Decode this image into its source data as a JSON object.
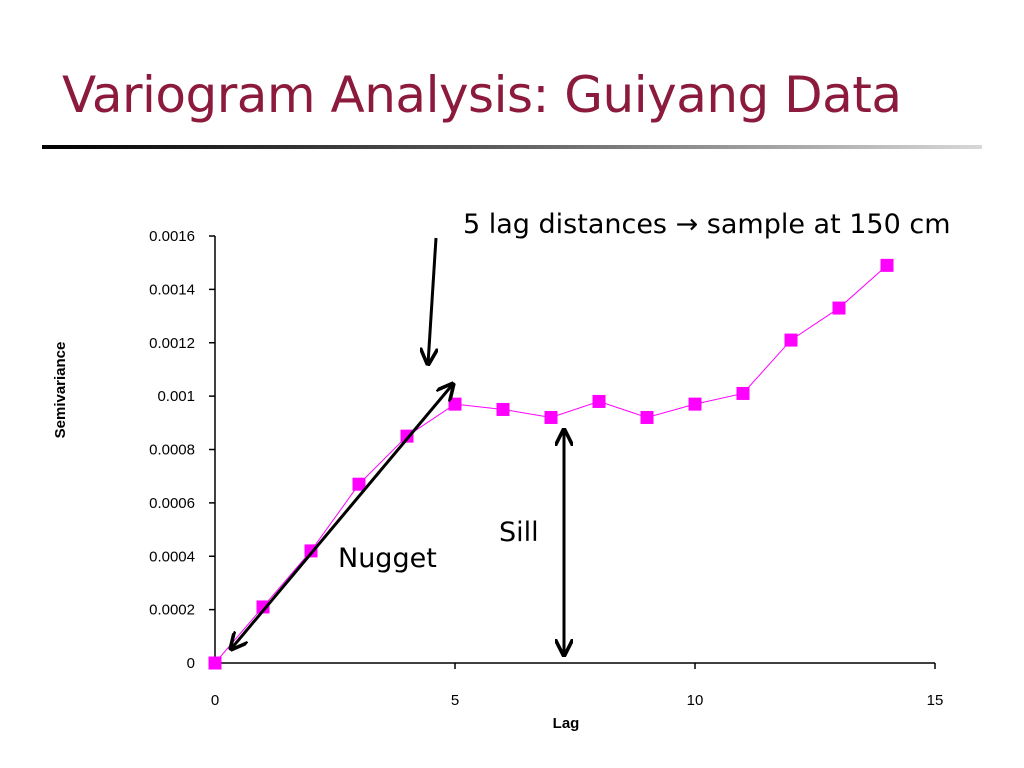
{
  "slide": {
    "title": "Variogram Analysis: Guiyang Data"
  },
  "colors": {
    "title": "#8b1a3c",
    "series": "#ff00ff",
    "annotation_arrows": "#000000"
  },
  "chart_data": {
    "type": "line",
    "xlabel": "Lag",
    "ylabel": "Semivariance",
    "xlim": [
      0,
      15
    ],
    "ylim": [
      0,
      0.0016
    ],
    "x_ticks": [
      "0",
      "5",
      "10",
      "15"
    ],
    "y_ticks": [
      "0",
      "0.0002",
      "0.0004",
      "0.0006",
      "0.0008",
      "0.001",
      "0.0012",
      "0.0014",
      "0.0016"
    ],
    "grid": false,
    "legend": "none",
    "series": [
      {
        "x": [
          0,
          1,
          2,
          3,
          4,
          5,
          6,
          7,
          8,
          9,
          10,
          11,
          12,
          13,
          14
        ],
        "y": [
          0,
          0.00021,
          0.00042,
          0.00067,
          0.00085,
          0.00097,
          0.00095,
          0.00092,
          0.00098,
          0.00092,
          0.00097,
          0.00101,
          0.00121,
          0.00133,
          0.00149
        ]
      }
    ],
    "annotations": {
      "lag_note": "5 lag distances → sample at 150 cm",
      "nugget": "Nugget",
      "sill": "Sill"
    }
  }
}
